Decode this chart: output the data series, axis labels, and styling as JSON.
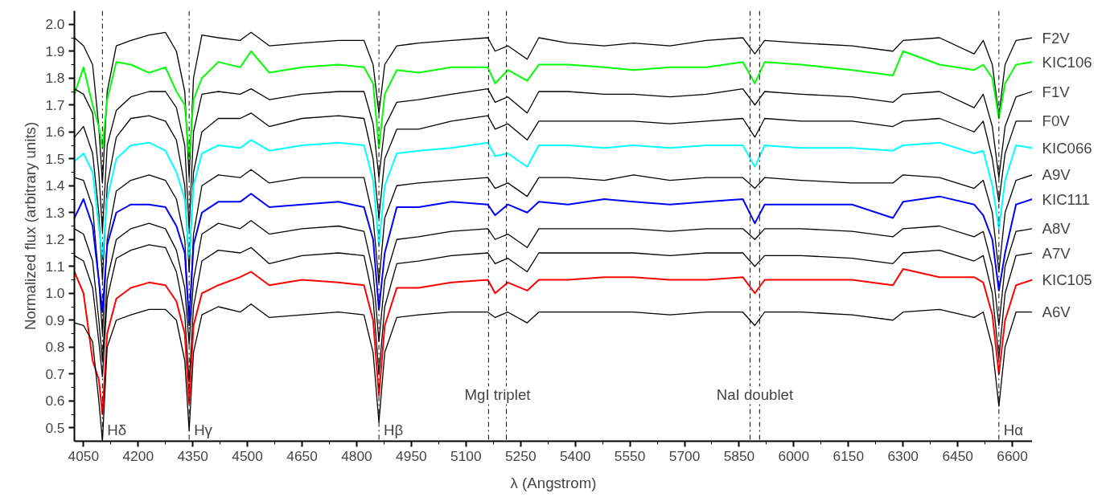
{
  "chart_data": {
    "type": "line",
    "xlabel": "λ (Angstrom)",
    "ylabel": "Normalized flux (arbitrary units)",
    "x": [
      4025,
      4050,
      4075,
      4092,
      4102,
      4115,
      4140,
      4180,
      4230,
      4275,
      4305,
      4328,
      4340,
      4352,
      4375,
      4420,
      4480,
      4510,
      4560,
      4650,
      4750,
      4820,
      4845,
      4861,
      4877,
      4910,
      4970,
      5060,
      5160,
      5180,
      5215,
      5268,
      5300,
      5380,
      5480,
      5560,
      5660,
      5760,
      5860,
      5893,
      5920,
      6020,
      6160,
      6272,
      6300,
      6400,
      6495,
      6520,
      6545,
      6563,
      6580,
      6610,
      6655
    ],
    "series": [
      {
        "name": "F2V",
        "color": "#000000",
        "values": [
          1.95,
          1.92,
          1.85,
          1.62,
          1.41,
          1.75,
          1.92,
          1.94,
          1.96,
          1.97,
          1.9,
          1.75,
          1.43,
          1.8,
          1.96,
          1.95,
          1.94,
          1.97,
          1.92,
          1.93,
          1.94,
          1.94,
          1.85,
          1.67,
          1.85,
          1.92,
          1.93,
          1.94,
          1.95,
          1.9,
          1.92,
          1.87,
          1.95,
          1.93,
          1.92,
          1.93,
          1.92,
          1.94,
          1.95,
          1.89,
          1.94,
          1.93,
          1.92,
          1.9,
          1.94,
          1.95,
          1.89,
          1.94,
          1.85,
          1.66,
          1.85,
          1.94,
          1.95
        ]
      },
      {
        "name": "KIC106",
        "color": "#00ff00",
        "values": [
          1.74,
          1.84,
          1.7,
          1.62,
          1.54,
          1.72,
          1.86,
          1.85,
          1.82,
          1.84,
          1.75,
          1.7,
          1.5,
          1.72,
          1.8,
          1.86,
          1.84,
          1.9,
          1.82,
          1.84,
          1.85,
          1.84,
          1.78,
          1.54,
          1.74,
          1.83,
          1.82,
          1.84,
          1.84,
          1.78,
          1.83,
          1.79,
          1.85,
          1.85,
          1.84,
          1.83,
          1.84,
          1.84,
          1.86,
          1.78,
          1.86,
          1.85,
          1.83,
          1.81,
          1.9,
          1.85,
          1.83,
          1.85,
          1.8,
          1.65,
          1.78,
          1.85,
          1.86
        ]
      },
      {
        "name": "F1V",
        "color": "#000000",
        "values": [
          1.76,
          1.74,
          1.67,
          1.45,
          1.23,
          1.55,
          1.68,
          1.73,
          1.75,
          1.75,
          1.69,
          1.55,
          1.24,
          1.6,
          1.74,
          1.75,
          1.74,
          1.76,
          1.72,
          1.74,
          1.75,
          1.75,
          1.63,
          1.43,
          1.62,
          1.71,
          1.72,
          1.74,
          1.76,
          1.71,
          1.73,
          1.67,
          1.75,
          1.75,
          1.74,
          1.74,
          1.73,
          1.74,
          1.76,
          1.7,
          1.75,
          1.74,
          1.73,
          1.71,
          1.74,
          1.75,
          1.69,
          1.74,
          1.62,
          1.43,
          1.62,
          1.73,
          1.75
        ]
      },
      {
        "name": "F0V",
        "color": "#000000",
        "values": [
          1.58,
          1.62,
          1.52,
          1.3,
          1.05,
          1.4,
          1.58,
          1.65,
          1.66,
          1.64,
          1.57,
          1.4,
          1.08,
          1.45,
          1.6,
          1.65,
          1.65,
          1.67,
          1.62,
          1.65,
          1.66,
          1.65,
          1.5,
          1.28,
          1.5,
          1.61,
          1.61,
          1.64,
          1.66,
          1.61,
          1.63,
          1.57,
          1.64,
          1.64,
          1.64,
          1.64,
          1.63,
          1.64,
          1.65,
          1.58,
          1.65,
          1.64,
          1.64,
          1.62,
          1.64,
          1.65,
          1.6,
          1.64,
          1.5,
          1.34,
          1.52,
          1.64,
          1.64
        ]
      },
      {
        "name": "KIC066",
        "color": "#00ffff",
        "values": [
          1.49,
          1.52,
          1.45,
          1.25,
          1.13,
          1.35,
          1.5,
          1.55,
          1.56,
          1.53,
          1.45,
          1.35,
          1.13,
          1.4,
          1.52,
          1.55,
          1.54,
          1.57,
          1.53,
          1.55,
          1.56,
          1.55,
          1.42,
          1.18,
          1.4,
          1.52,
          1.53,
          1.54,
          1.56,
          1.51,
          1.52,
          1.47,
          1.55,
          1.55,
          1.54,
          1.55,
          1.54,
          1.55,
          1.55,
          1.47,
          1.55,
          1.54,
          1.54,
          1.53,
          1.55,
          1.56,
          1.52,
          1.53,
          1.4,
          1.24,
          1.42,
          1.55,
          1.54
        ]
      },
      {
        "name": "A9V",
        "color": "#000000",
        "values": [
          1.43,
          1.42,
          1.32,
          1.05,
          0.85,
          1.2,
          1.38,
          1.42,
          1.44,
          1.42,
          1.35,
          1.2,
          0.88,
          1.22,
          1.4,
          1.44,
          1.43,
          1.46,
          1.41,
          1.43,
          1.43,
          1.43,
          1.28,
          1.04,
          1.28,
          1.4,
          1.41,
          1.42,
          1.43,
          1.39,
          1.41,
          1.36,
          1.43,
          1.43,
          1.42,
          1.44,
          1.42,
          1.43,
          1.43,
          1.39,
          1.43,
          1.42,
          1.41,
          1.41,
          1.44,
          1.43,
          1.39,
          1.42,
          1.3,
          1.08,
          1.3,
          1.42,
          1.44
        ]
      },
      {
        "name": "KIC111",
        "color": "#0000ff",
        "values": [
          1.28,
          1.35,
          1.25,
          1.05,
          0.93,
          1.18,
          1.3,
          1.33,
          1.33,
          1.32,
          1.25,
          1.15,
          0.89,
          1.18,
          1.3,
          1.34,
          1.34,
          1.37,
          1.32,
          1.33,
          1.34,
          1.32,
          1.2,
          0.94,
          1.15,
          1.32,
          1.32,
          1.34,
          1.33,
          1.29,
          1.33,
          1.3,
          1.34,
          1.33,
          1.35,
          1.34,
          1.33,
          1.34,
          1.35,
          1.26,
          1.33,
          1.33,
          1.33,
          1.28,
          1.34,
          1.36,
          1.33,
          1.29,
          1.2,
          1.01,
          1.15,
          1.33,
          1.35
        ]
      },
      {
        "name": "A8V",
        "color": "#000000",
        "values": [
          1.24,
          1.22,
          1.12,
          0.9,
          0.75,
          1.05,
          1.2,
          1.24,
          1.26,
          1.24,
          1.16,
          1.02,
          0.81,
          1.05,
          1.22,
          1.26,
          1.24,
          1.27,
          1.22,
          1.24,
          1.25,
          1.23,
          1.08,
          0.82,
          1.05,
          1.2,
          1.21,
          1.23,
          1.24,
          1.2,
          1.22,
          1.17,
          1.24,
          1.24,
          1.24,
          1.24,
          1.23,
          1.24,
          1.24,
          1.2,
          1.24,
          1.24,
          1.23,
          1.21,
          1.24,
          1.25,
          1.21,
          1.23,
          1.1,
          0.88,
          1.1,
          1.23,
          1.24
        ]
      },
      {
        "name": "A7V",
        "color": "#000000",
        "values": [
          1.14,
          1.12,
          1.02,
          0.82,
          0.69,
          0.98,
          1.13,
          1.16,
          1.18,
          1.17,
          1.08,
          0.92,
          0.67,
          0.95,
          1.12,
          1.16,
          1.15,
          1.17,
          1.11,
          1.14,
          1.15,
          1.14,
          0.98,
          0.7,
          0.95,
          1.11,
          1.12,
          1.14,
          1.15,
          1.11,
          1.13,
          1.08,
          1.15,
          1.15,
          1.15,
          1.15,
          1.14,
          1.15,
          1.15,
          1.1,
          1.14,
          1.14,
          1.13,
          1.11,
          1.15,
          1.16,
          1.12,
          1.14,
          1.0,
          0.76,
          1.0,
          1.14,
          1.15
        ]
      },
      {
        "name": "KIC105",
        "color": "#ff0000",
        "values": [
          1.08,
          1.0,
          0.75,
          0.68,
          0.55,
          0.85,
          0.98,
          1.02,
          1.04,
          1.03,
          0.97,
          0.85,
          0.59,
          0.88,
          1.0,
          1.03,
          1.06,
          1.08,
          1.03,
          1.05,
          1.04,
          1.03,
          0.9,
          0.62,
          0.88,
          1.02,
          1.02,
          1.04,
          1.05,
          1.0,
          1.04,
          1.01,
          1.05,
          1.05,
          1.06,
          1.06,
          1.05,
          1.05,
          1.06,
          1.0,
          1.05,
          1.05,
          1.05,
          1.03,
          1.09,
          1.06,
          1.06,
          1.04,
          0.92,
          0.7,
          0.9,
          1.03,
          1.05
        ]
      },
      {
        "name": "A6V",
        "color": "#000000",
        "values": [
          0.89,
          0.88,
          0.82,
          0.6,
          0.45,
          0.8,
          0.9,
          0.92,
          0.94,
          0.94,
          0.9,
          0.75,
          0.49,
          0.78,
          0.92,
          0.95,
          0.93,
          0.96,
          0.91,
          0.92,
          0.93,
          0.92,
          0.78,
          0.52,
          0.78,
          0.91,
          0.92,
          0.93,
          0.93,
          0.91,
          0.93,
          0.89,
          0.93,
          0.93,
          0.93,
          0.93,
          0.92,
          0.93,
          0.93,
          0.88,
          0.93,
          0.93,
          0.92,
          0.9,
          0.93,
          0.94,
          0.91,
          0.93,
          0.8,
          0.58,
          0.8,
          0.93,
          0.93
        ]
      }
    ],
    "xlim": [
      4025,
      6655
    ],
    "ylim": [
      0.45,
      2.05
    ],
    "xticks": [
      4050,
      4200,
      4350,
      4500,
      4650,
      4800,
      4950,
      5100,
      5250,
      5400,
      5550,
      5700,
      5850,
      6000,
      6150,
      6300,
      6450,
      6600
    ],
    "yticks": [
      0.5,
      0.6,
      0.7,
      0.8,
      0.9,
      {
        "value": 1.0,
        "label": "1.0"
      },
      1.1,
      1.2,
      1.3,
      1.4,
      1.5,
      1.6,
      1.7,
      1.8,
      1.9,
      {
        "value": 2.0,
        "label": "2.0"
      }
    ],
    "ref_lines": [
      {
        "axis": "x",
        "value": 4102,
        "label": "Hδ",
        "line_style": "dashdot"
      },
      {
        "axis": "x",
        "value": 4340,
        "label": "Hγ",
        "line_style": "dashdot"
      },
      {
        "axis": "x",
        "value": 4861,
        "label": "Hβ",
        "line_style": "dashdot"
      },
      {
        "axis": "x",
        "value": 5162,
        "label": null,
        "line_style": "dashdot"
      },
      {
        "axis": "x",
        "value": 5211,
        "label": null,
        "line_style": "dashdot"
      },
      {
        "axis": "x",
        "value": 5880,
        "label": null,
        "line_style": "dashdot"
      },
      {
        "axis": "x",
        "value": 5906,
        "label": null,
        "line_style": "dashdot"
      },
      {
        "axis": "x",
        "value": 6563,
        "label": "Hα",
        "line_style": "dashdot"
      }
    ],
    "annotations": [
      "MgI triplet",
      "NaI doublet"
    ],
    "grid": false
  }
}
